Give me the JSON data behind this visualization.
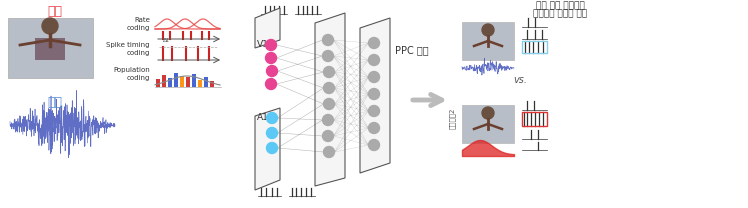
{
  "title_left_top": "시각",
  "title_left_bottom": "청각",
  "title_left_top_color": "#e8474c",
  "title_left_bottom_color": "#5b8dd9",
  "coding_labels": [
    "Rate\ncoding",
    "Spike timing\ncoding",
    "Population\ncoding"
  ],
  "area_labels_v1": "V1",
  "area_labels_a1": "A1",
  "area_labels_ppc": "PPC 모사",
  "right_title_line1": "최종 말단 신경망의",
  "right_title_line2": "다중감각 선택성 형성",
  "vs_text": "vs.",
  "multisensory_label": "다중감각2",
  "bg_color": "#ffffff",
  "node_color_v1": "#e84393",
  "node_color_a1": "#5bc8f5",
  "node_color_ppc": "#aaaaaa",
  "highlight_blue": "#87CEEB",
  "highlight_red": "#dd3333",
  "arrow_color": "#bbbbbb"
}
